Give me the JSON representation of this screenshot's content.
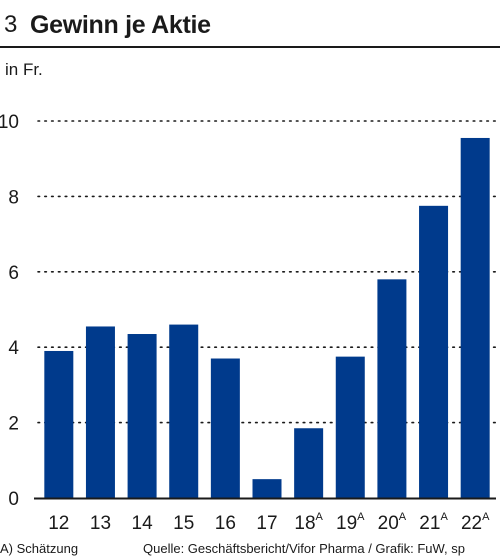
{
  "header": {
    "number": "3",
    "title": "Gewinn je Aktie"
  },
  "unit": "in Fr.",
  "footer": {
    "note": "A) Schätzung",
    "source": "Quelle: Geschäftsbericht/Vifor Pharma / Grafik: FuW, sp"
  },
  "colors": {
    "bar": "#003a8c",
    "text": "#1a1a1a",
    "grid": "#1a1a1a"
  },
  "chart_data": {
    "type": "bar",
    "title": "Gewinn je Aktie",
    "ylabel": "in Fr.",
    "ylim": [
      0,
      10
    ],
    "yticks": [
      0,
      2,
      4,
      6,
      8,
      10
    ],
    "grid": "dotted horizontal",
    "categories": [
      "12",
      "13",
      "14",
      "15",
      "16",
      "17",
      "18",
      "19",
      "20",
      "21",
      "22"
    ],
    "estimate_marker": "A",
    "estimated": [
      false,
      false,
      false,
      false,
      false,
      false,
      true,
      true,
      true,
      true,
      true
    ],
    "values": [
      3.9,
      4.55,
      4.35,
      4.6,
      3.7,
      0.5,
      1.85,
      3.75,
      5.8,
      7.75,
      9.55
    ]
  }
}
